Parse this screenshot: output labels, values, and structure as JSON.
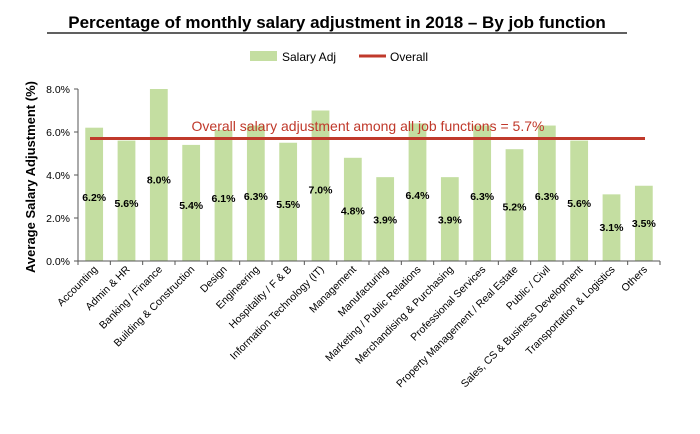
{
  "chart_data": {
    "type": "bar",
    "title": "Percentage of monthly salary adjustment in 2018 – By job function",
    "ylabel": "Average Salary Adjustment (%)",
    "xlabel": "",
    "ylim": [
      0,
      8
    ],
    "yticks": [
      "0.0%",
      "2.0%",
      "4.0%",
      "6.0%",
      "8.0%"
    ],
    "grid": false,
    "legend_position": "top",
    "categories": [
      "Accounting",
      "Admin & HR",
      "Banking / Finance",
      "Building & Construction",
      "Design",
      "Engineering",
      "Hospitality / F & B",
      "Information Technology (IT)",
      "Management",
      "Manufacturing",
      "Marketing / Public Relations",
      "Merchandising & Purchasing",
      "Professional Services",
      "Property Management / Real Estate",
      "Public / Civil",
      "Sales, CS & Business Development",
      "Transportation & Logistics",
      "Others"
    ],
    "series": [
      {
        "name": "Salary Adj",
        "kind": "bar",
        "color": "#c4dea1",
        "values": [
          6.2,
          5.6,
          8.0,
          5.4,
          6.1,
          6.3,
          5.5,
          7.0,
          4.8,
          3.9,
          6.4,
          3.9,
          6.3,
          5.2,
          6.3,
          5.6,
          3.1,
          3.5
        ],
        "labels": [
          "6.2%",
          "5.6%",
          "8.0%",
          "5.4%",
          "6.1%",
          "6.3%",
          "5.5%",
          "7.0%",
          "4.8%",
          "3.9%",
          "6.4%",
          "3.9%",
          "6.3%",
          "5.2%",
          "6.3%",
          "5.6%",
          "3.1%",
          "3.5%"
        ]
      },
      {
        "name": "Overall",
        "kind": "line",
        "color": "#c0392b",
        "value": 5.7
      }
    ],
    "annotation": "Overall salary adjustment among all job functions = 5.7%"
  }
}
